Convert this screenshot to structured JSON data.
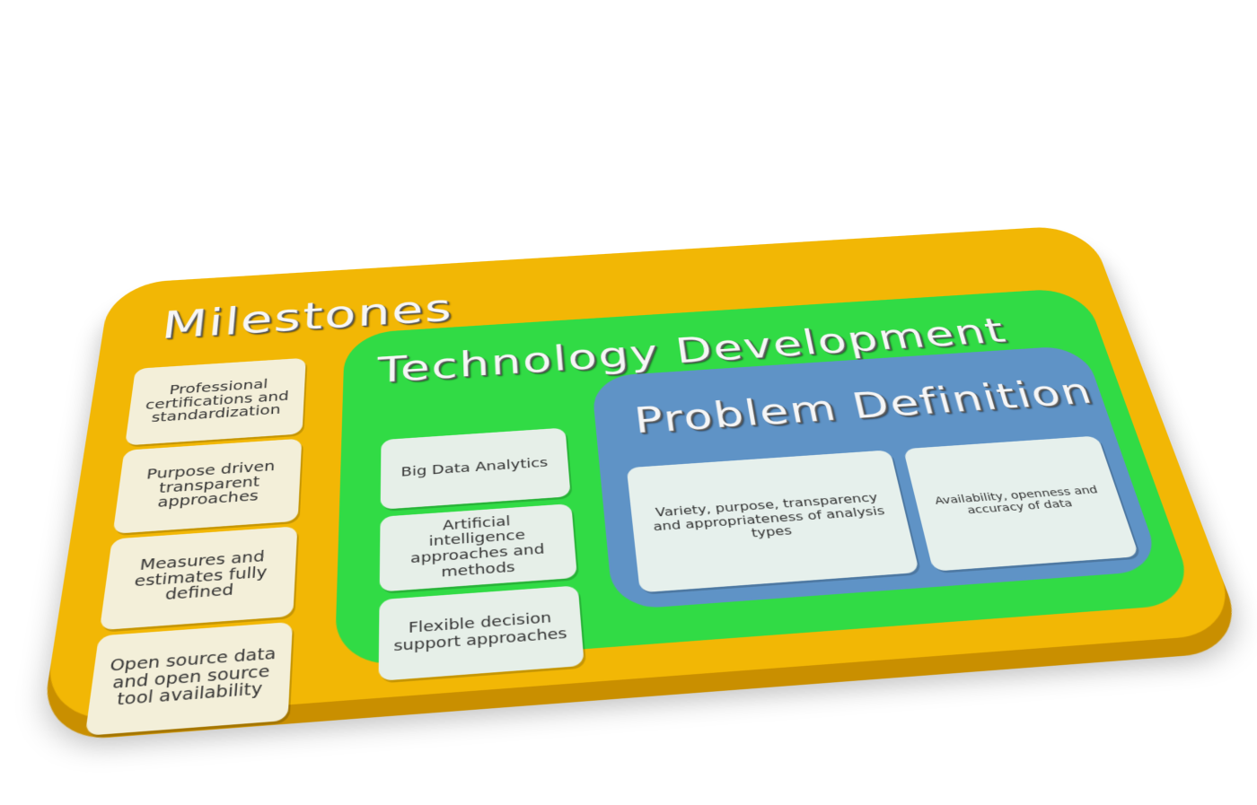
{
  "milestones": {
    "title": "Milestones",
    "items": [
      "Professional certifications and standardization",
      "Purpose driven transparent approaches",
      "Measures and estimates fully defined",
      "Open source data and open source tool availability"
    ]
  },
  "technology": {
    "title": "Technology Development",
    "items": [
      "Big Data Analytics",
      "Artificial intelligence approaches and methods",
      "Flexible decision support approaches"
    ]
  },
  "problem": {
    "title": "Problem Definition",
    "items": [
      "Variety, purpose, transparency and appropriateness of analysis types",
      "Availability, openness and accuracy of data"
    ]
  },
  "colors": {
    "milestones_layer": "#f2b705",
    "technology_layer": "#31db45",
    "problem_layer": "#5f93c6",
    "card": "#f3efd9"
  }
}
